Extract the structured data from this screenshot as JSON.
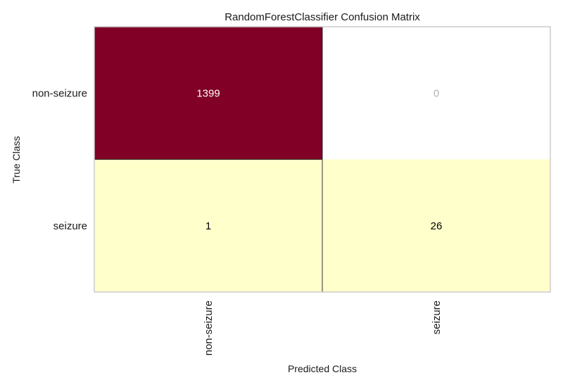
{
  "chart_data": {
    "type": "heatmap",
    "title": "RandomForestClassifier Confusion Matrix",
    "xlabel": "Predicted Class",
    "ylabel": "True Class",
    "x_categories": [
      "non-seizure",
      "seizure"
    ],
    "y_categories": [
      "non-seizure",
      "seizure"
    ],
    "values": [
      [
        1399,
        0
      ],
      [
        1,
        26
      ]
    ],
    "cell_colors": [
      [
        "#800026",
        "#ffffff"
      ],
      [
        "#ffffcc",
        "#ffffcc"
      ]
    ],
    "cell_text_colors": [
      [
        "#ffffff",
        "#b3b3b3"
      ],
      [
        "#000000",
        "#000000"
      ]
    ],
    "grid": false
  }
}
